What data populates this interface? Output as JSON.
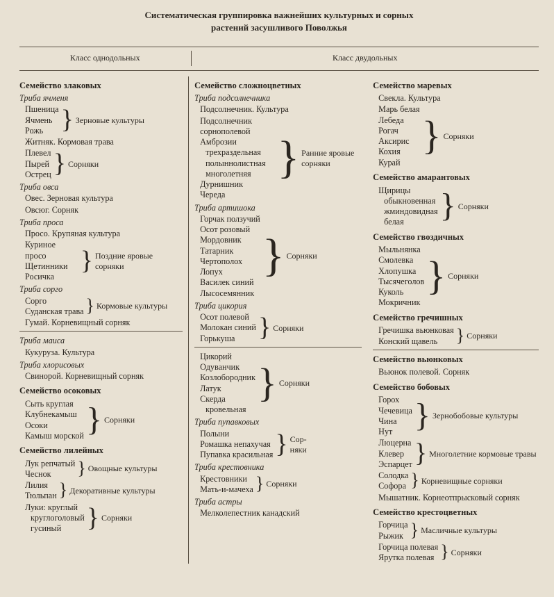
{
  "title": "Систематическая группировка важнейших культурных и сорных",
  "subtitle": "растений засушливого Поволжья",
  "header": {
    "left": "Класс однодольных",
    "right": "Класс двудольных"
  },
  "labels": {
    "grain_crops": "Зерновые культуры",
    "weeds": "Сорняки",
    "weeds2": "Сор-\nняки",
    "late_spring_weeds": "Поздние яровые сорняки",
    "fodder_crops": "Кормовые культуры",
    "veg_crops": "Овощные культуры",
    "ornamental": "Декоративные культуры",
    "early_spring_weeds": "Ранние яровые сорняки",
    "oil_crops": "Масличные культуры",
    "legume_crops": "Зернобобовые культуры",
    "perennial_fodder": "Многолетние кормовые травы",
    "rhizome_weeds": "Корневищные сорняки"
  },
  "col1": {
    "fam_cereals": "Семейство злаковых",
    "tribe_barley": "Триба ячменя",
    "wheat": "Пшеница",
    "barley": "Ячмень",
    "rye": "Рожь",
    "zhitnyak": "Житняк. Кормовая трава",
    "plevel": "Плевел",
    "pyrei": "Пырей",
    "ostrets": "Острец",
    "tribe_oats": "Триба овса",
    "oves": "Овес. Зерновая культура",
    "ovsyug": "Овсюг. Сорняк",
    "tribe_millet": "Триба проса",
    "proso": "Просо. Крупяная культура",
    "kurinoe": "Куриное просо",
    "schetinniki": "Щетинники",
    "rosichka": "Росичка",
    "tribe_sorghum": "Триба сорго",
    "sorgo": "Сорго",
    "sudan": "Суданская трава",
    "gumai": "Гумай. Корневищный сорняк",
    "tribe_maize": "Триба маиса",
    "corn": "Кукуруза. Культура",
    "tribe_chloris": "Триба хлорисовых",
    "svinoroi": "Свинорой. Корневищный сорняк",
    "fam_sedge": "Семейство осоковых",
    "syt": "Сыть круглая",
    "klubne": "Клубнекамыш",
    "osoki": "Осоки",
    "kamysh": "Камыш морской",
    "fam_lily": "Семейство лилейных",
    "onion": "Лук репчатый",
    "garlic": "Чеснок",
    "lily": "Лилия",
    "tulip": "Тюльпан",
    "luki": "Луки:",
    "round": "круглый",
    "roundheaded": "круглоголовый",
    "goose": "гусиный"
  },
  "col2": {
    "fam_compositae": "Семейство сложноцветных",
    "tribe_sunflower": "Триба подсолнечника",
    "sunflower": "Подсолнечник. Культура",
    "field_sunflower": "Подсолнечник сорнополевой",
    "ambrosia": "Амброзии",
    "three": "трехраздельная",
    "worm": "полыннолистная",
    "peren": "многолетняя",
    "durnishnik": "Дурнишник",
    "chereda": "Череда",
    "tribe_artichoke": "Триба артишока",
    "gorchak": "Горчак ползучий",
    "osot_rose": "Осот розовый",
    "mordovnik": "Мордовник",
    "tatarnik": "Татарник",
    "chertopoloh": "Чертополох",
    "lopuh": "Лопух",
    "vasilek": "Василек синий",
    "lysosem": "Лысосемянник",
    "tribe_chicory": "Триба цикория",
    "osot_field": "Осот полевой",
    "molokan": "Молокан синий",
    "gorkusha": "Горькуша",
    "chicory": "Цикорий",
    "dandelion": "Одуванчик",
    "kozloborodnik": "Козлобородник",
    "latuk": "Латук",
    "skerda": "Скерда",
    "krovelnaya": "кровельная",
    "tribe_chamomile": "Триба пупавковых",
    "polyni": "Полыни",
    "romashka": "Ромашка непахучая",
    "pupavka": "Пупавка красильная",
    "tribe_senecio": "Триба крестовника",
    "krestovniki": "Крестовники",
    "matimacheha": "Мать-и-мачеха",
    "tribe_aster": "Триба астры",
    "melkolepestnik": "Мелколепестник канадский"
  },
  "col3": {
    "fam_chenopod": "Семейство маревых",
    "svekla": "Свекла. Культура",
    "mar": "Марь белая",
    "lebeda": "Лебеда",
    "rogach": "Рогач",
    "aksyris": "Аксирис",
    "kohia": "Кохия",
    "kurai": "Курай",
    "fam_amaranth": "Семейство амарантовых",
    "schiritsy": "Щирицы",
    "ordinary": "обыкновенная",
    "zhmind": "жминдовидная",
    "white": "белая",
    "fam_caryoph": "Семейство гвоздичных",
    "mylnyanka": "Мыльнянка",
    "smolyovka": "Смолевка",
    "hlopushka": "Хлопушка",
    "tysyach": "Тысячеголов",
    "kukol": "Куколь",
    "mokrichnik": "Мокричник",
    "fam_polygon": "Семейство гречишных",
    "grechishka": "Гречишка вьюнковая",
    "horse_sorrel": "Конский щавель",
    "fam_convolv": "Семейство вьюнковых",
    "vyunok": "Вьюнок полевой. Сорняк",
    "fam_legume": "Семейство бобовых",
    "gorokh": "Горох",
    "chechevitsa": "Чечевица",
    "china": "Чина",
    "nut": "Нут",
    "lyucerna": "Люцерна",
    "klever": "Клевер",
    "esparset": "Эспарцет",
    "solodka": "Солодка",
    "sofora": "Софора",
    "myshatnik": "Мышатник. Корнеотпрысковый сорняк",
    "fam_crucifer": "Семейство крестоцветных",
    "gorchitsa": "Горчица",
    "ryzhik": "Рыжик",
    "gorchitsa_field": "Горчица полевая",
    "yarutka": "Ярутка полевая"
  }
}
